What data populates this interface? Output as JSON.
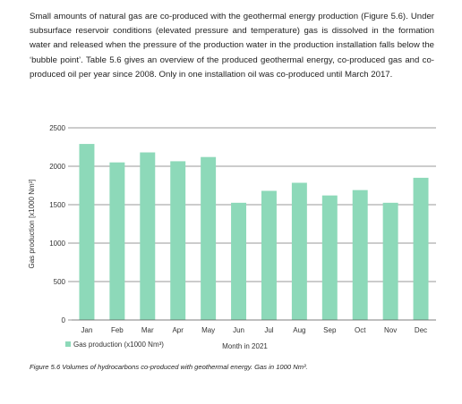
{
  "intro_text": "Small amounts of natural gas are co-produced with the geothermal energy production (Figure 5.6). Under subsurface reservoir conditions (elevated pressure and temperature) gas is dissolved in the formation water and released when the pressure of the production water in the production installation falls below the ‘bubble point’. Table 5.6 gives an overview of the produced geothermal energy, co-produced gas and co-produced oil per year since 2008. Only in one installation oil was co-produced until March 2017.",
  "caption": "Figure 5.6 Volumes of hydrocarbons co-produced with geothermal energy. Gas in 1000 Nm³.",
  "chart_data": {
    "type": "bar",
    "categories": [
      "Jan",
      "Feb",
      "Mar",
      "Apr",
      "May",
      "Jun",
      "Jul",
      "Aug",
      "Sep",
      "Oct",
      "Nov",
      "Dec"
    ],
    "series": [
      {
        "name": "Gas production (x1000 Nm³)",
        "values": [
          2290,
          2050,
          2180,
          2065,
          2120,
          1525,
          1680,
          1785,
          1620,
          1690,
          1525,
          1850
        ],
        "color": "#8dd9b9"
      }
    ],
    "xlabel": "Month in 2021",
    "ylabel": "Gas production [x1000 Nm³]",
    "ylim": [
      0,
      2500
    ],
    "yticks": [
      "0",
      "500",
      "1000",
      "1500",
      "2000",
      "2500"
    ],
    "grid": true,
    "legend": "bottom-left"
  }
}
